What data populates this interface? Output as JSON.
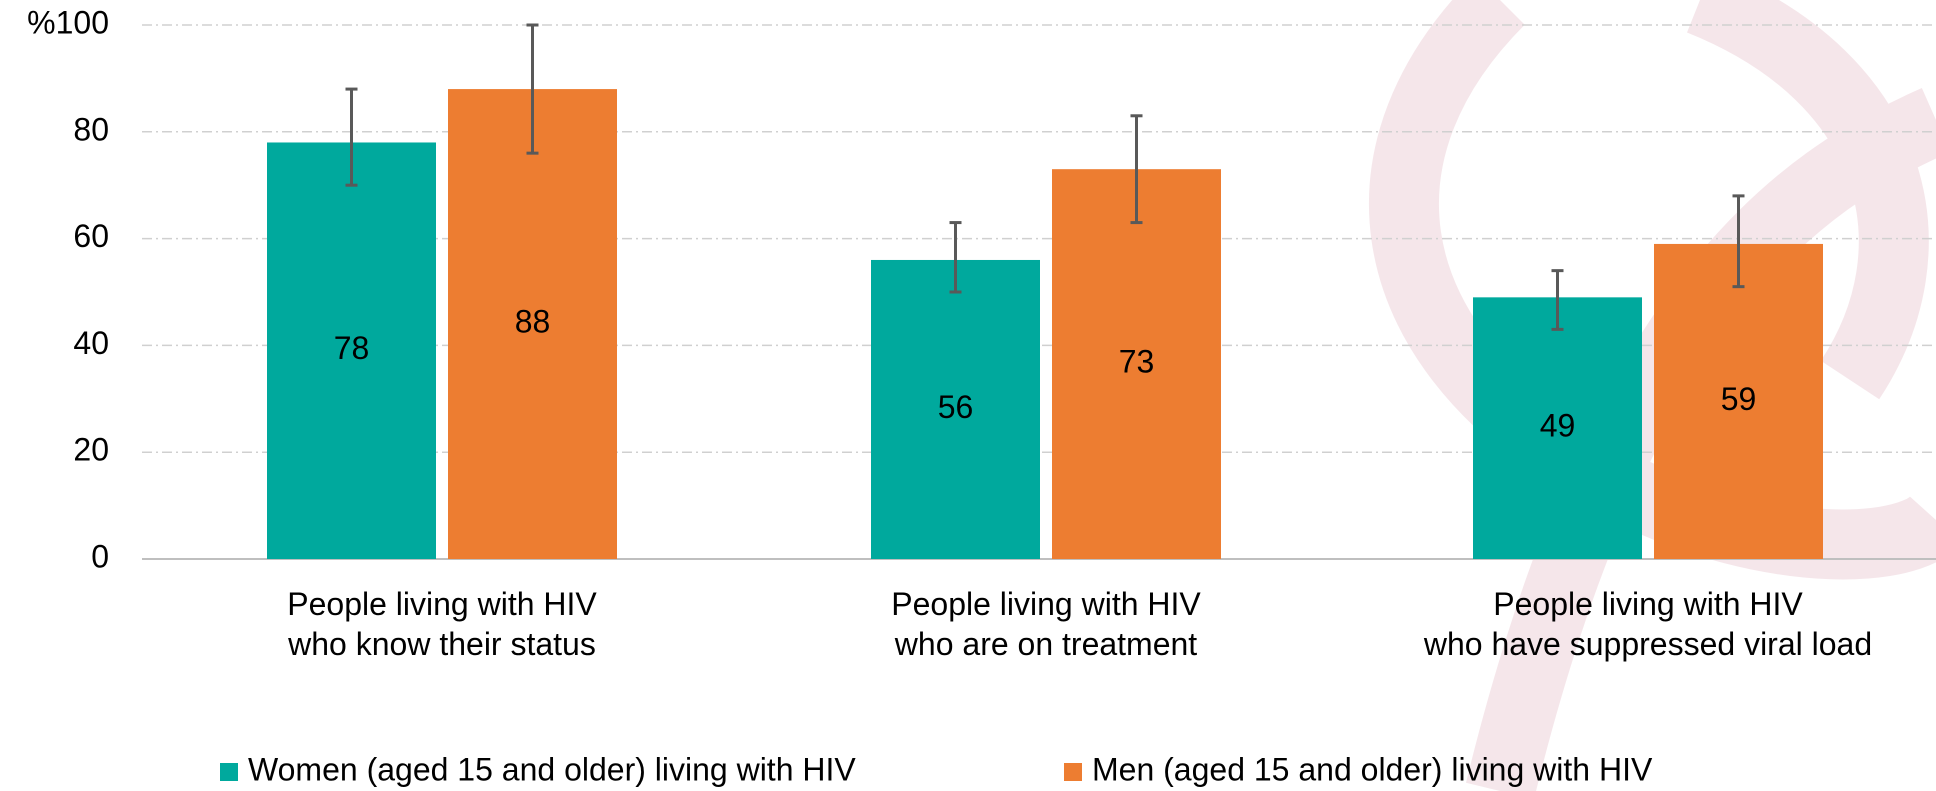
{
  "chart_data": {
    "type": "bar",
    "categories": [
      "People living with HIV\nwho know their status",
      "People living with HIV\nwho are on treatment",
      "People living with HIV\nwho have suppressed viral load"
    ],
    "series": [
      {
        "name": "Women (aged 15 and older) living with HIV",
        "color": "#00a99d",
        "values": [
          78,
          56,
          49
        ],
        "ci_low": [
          70,
          50,
          43
        ],
        "ci_high": [
          88,
          63,
          54
        ]
      },
      {
        "name": "Men (aged 15 and older) living with HIV",
        "color": "#ed7d31",
        "values": [
          88,
          73,
          59
        ],
        "ci_low": [
          76,
          63,
          51
        ],
        "ci_high": [
          100,
          83,
          68
        ]
      }
    ],
    "ylim": [
      0,
      100
    ],
    "yticks": [
      0,
      20,
      40,
      60,
      80,
      {
        "value": 100,
        "label": "%100"
      }
    ],
    "grid": true,
    "legend": "bottom"
  }
}
